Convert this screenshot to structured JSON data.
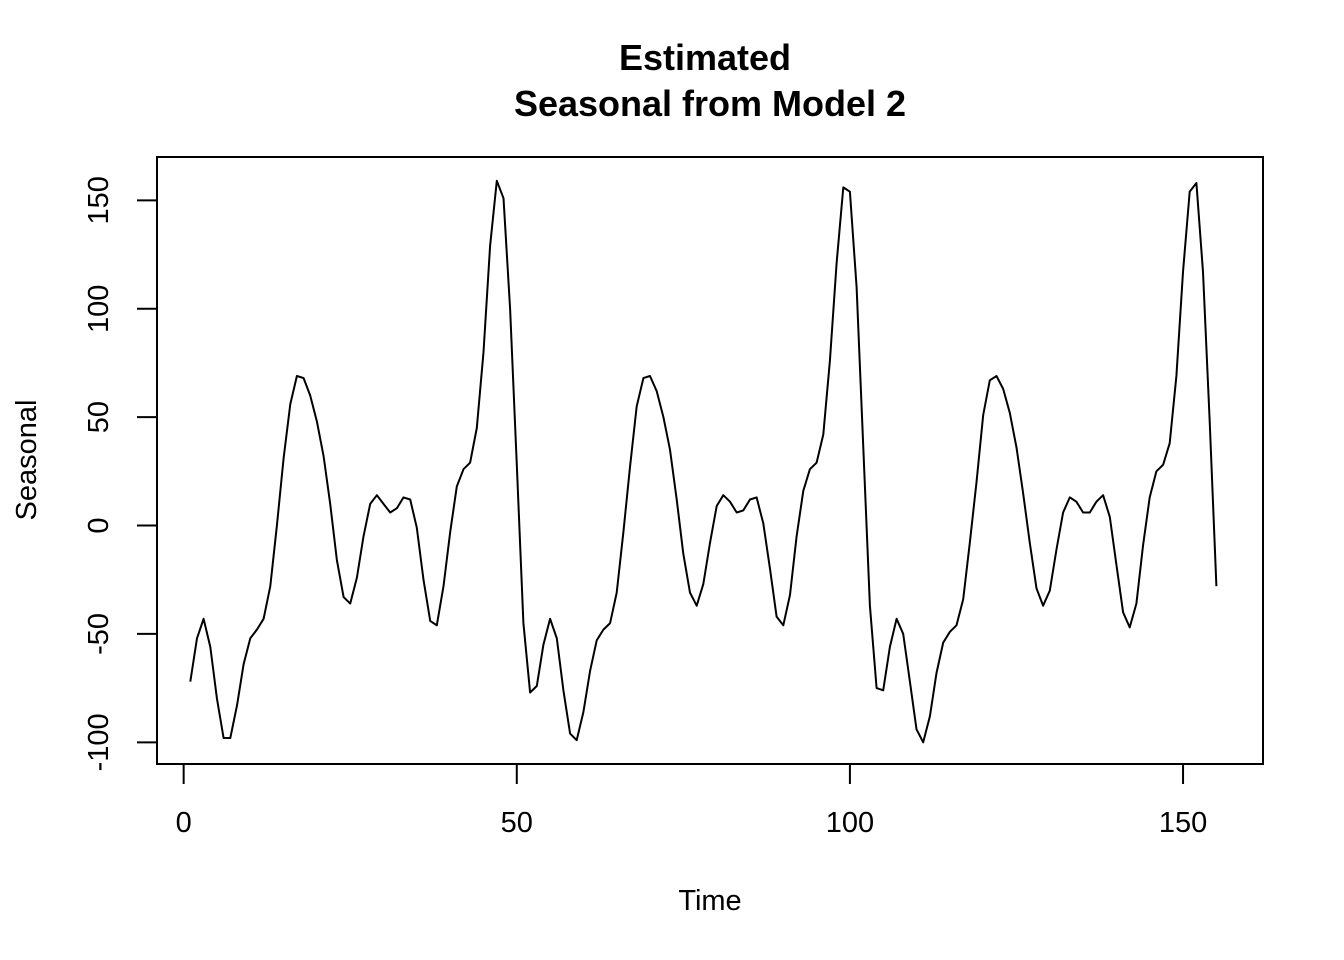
{
  "chart_data": {
    "type": "line",
    "title_lines": [
      "Estimated",
      "Seasonal from Model 2"
    ],
    "xlabel": "Time",
    "ylabel": "Seasonal",
    "xlim": [
      -4,
      162
    ],
    "ylim": [
      -110,
      170
    ],
    "xticks": [
      0,
      50,
      100,
      150
    ],
    "yticks": [
      -100,
      -50,
      0,
      50,
      100,
      150
    ],
    "grid": false,
    "line_color": "#000000",
    "series": [
      {
        "x": [
          1,
          2,
          3,
          4,
          5,
          6,
          7,
          8,
          9,
          10,
          11,
          12,
          13,
          14,
          15,
          16,
          17,
          18,
          19,
          20,
          21,
          22,
          23,
          24,
          25,
          26,
          27,
          28,
          29,
          30,
          31,
          32,
          33,
          34,
          35,
          36,
          37,
          38,
          39,
          40,
          41,
          42,
          43,
          44,
          45,
          46,
          47,
          48,
          49,
          50,
          51,
          52,
          53,
          54,
          55,
          56,
          57,
          58,
          59,
          60,
          61,
          62,
          63,
          64,
          65,
          66,
          67,
          68,
          69,
          70,
          71,
          72,
          73,
          74,
          75,
          76,
          77,
          78,
          79,
          80,
          81,
          82,
          83,
          84,
          85,
          86,
          87,
          88,
          89,
          90,
          91,
          92,
          93,
          94,
          95,
          96,
          97,
          98,
          99,
          100,
          101,
          102,
          103,
          104,
          105,
          106,
          107,
          108,
          109,
          110,
          111,
          112,
          113,
          114,
          115,
          116,
          117,
          118,
          119,
          120,
          121,
          122,
          123,
          124,
          125,
          126,
          127,
          128,
          129,
          130,
          131,
          132,
          133,
          134,
          135,
          136,
          137,
          138,
          139,
          140,
          141,
          142,
          143,
          144,
          145,
          146,
          147,
          148,
          149,
          150,
          151,
          152,
          153,
          154,
          155
        ],
        "y": [
          -72,
          -52,
          -43,
          -56,
          -80,
          -98,
          -98,
          -83,
          -64,
          -52,
          -48,
          -43,
          -28,
          0,
          31,
          56,
          69,
          68,
          60,
          48,
          32,
          10,
          -16,
          -33,
          -36,
          -24,
          -5,
          10,
          14,
          10,
          6,
          8,
          13,
          12,
          -1,
          -25,
          -44,
          -46,
          -28,
          -3,
          18,
          26,
          29,
          45,
          80,
          129,
          159,
          151,
          100,
          28,
          -45,
          -77,
          -74,
          -55,
          -43,
          -52,
          -76,
          -96,
          -99,
          -86,
          -67,
          -53,
          -48,
          -45,
          -31,
          -3,
          27,
          55,
          68,
          69,
          62,
          50,
          35,
          12,
          -13,
          -31,
          -37,
          -27,
          -8,
          9,
          14,
          11,
          6,
          7,
          12,
          13,
          1,
          -20,
          -42,
          -46,
          -32,
          -5,
          16,
          26,
          29,
          42,
          76,
          121,
          156,
          154,
          110,
          37,
          -37,
          -75,
          -76,
          -56,
          -43,
          -50,
          -72,
          -94,
          -100,
          -88,
          -68,
          -54,
          -49,
          -46,
          -34,
          -8,
          20,
          51,
          67,
          69,
          63,
          52,
          36,
          15,
          -8,
          -29,
          -37,
          -30,
          -11,
          6,
          13,
          11,
          6,
          6,
          11,
          14,
          4,
          -18,
          -40,
          -47,
          -36,
          -9,
          13,
          25,
          28,
          38,
          69,
          117,
          154,
          158,
          117,
          48,
          -28
        ]
      }
    ]
  }
}
